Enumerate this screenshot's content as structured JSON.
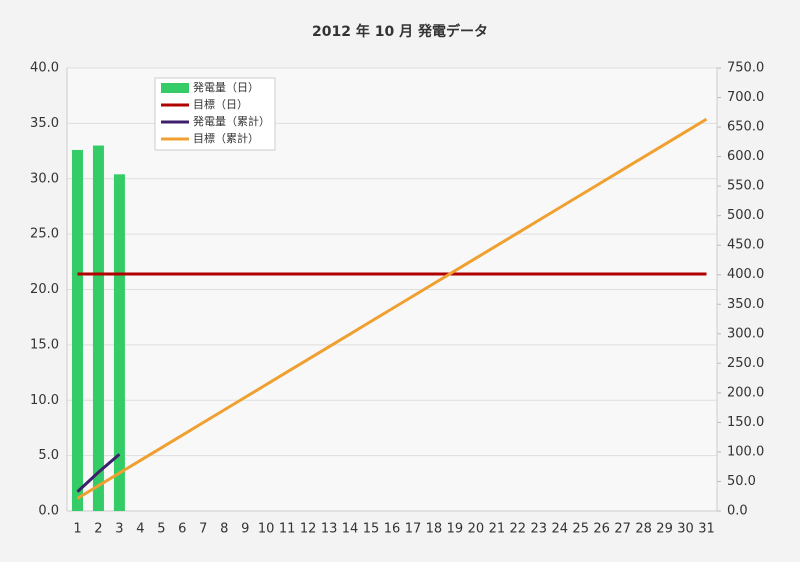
{
  "chart_data": {
    "type": "bar",
    "title": "2012 年 10 月 発電データ",
    "categories": [
      "1",
      "2",
      "3",
      "4",
      "5",
      "6",
      "7",
      "8",
      "9",
      "10",
      "11",
      "12",
      "13",
      "14",
      "15",
      "16",
      "17",
      "18",
      "19",
      "20",
      "21",
      "22",
      "23",
      "24",
      "25",
      "26",
      "27",
      "28",
      "29",
      "30",
      "31"
    ],
    "series": [
      {
        "name": "発電量（日）",
        "type": "bar",
        "axis": "y",
        "color": "#33cc66",
        "values": [
          32.6,
          33.0,
          30.4,
          null,
          null,
          null,
          null,
          null,
          null,
          null,
          null,
          null,
          null,
          null,
          null,
          null,
          null,
          null,
          null,
          null,
          null,
          null,
          null,
          null,
          null,
          null,
          null,
          null,
          null,
          null,
          null
        ]
      },
      {
        "name": "目標（日）",
        "type": "line",
        "axis": "y",
        "color": "#b00000",
        "values": [
          21.4,
          21.4,
          21.4,
          21.4,
          21.4,
          21.4,
          21.4,
          21.4,
          21.4,
          21.4,
          21.4,
          21.4,
          21.4,
          21.4,
          21.4,
          21.4,
          21.4,
          21.4,
          21.4,
          21.4,
          21.4,
          21.4,
          21.4,
          21.4,
          21.4,
          21.4,
          21.4,
          21.4,
          21.4,
          21.4,
          21.4
        ]
      },
      {
        "name": "発電量（累計）",
        "type": "line",
        "axis": "y2",
        "color": "#3d1f6b",
        "values": [
          32.6,
          65.6,
          96.0,
          null,
          null,
          null,
          null,
          null,
          null,
          null,
          null,
          null,
          null,
          null,
          null,
          null,
          null,
          null,
          null,
          null,
          null,
          null,
          null,
          null,
          null,
          null,
          null,
          null,
          null,
          null,
          null
        ]
      },
      {
        "name": "目標（累計）",
        "type": "line",
        "axis": "y2",
        "color": "#f0a030",
        "values": [
          21.4,
          42.8,
          64.2,
          85.6,
          107,
          128.4,
          149.8,
          171.2,
          192.6,
          214,
          235.4,
          256.8,
          278.2,
          299.6,
          321,
          342.4,
          363.8,
          385.2,
          406.6,
          428,
          449.4,
          470.8,
          492.2,
          513.6,
          535,
          556.4,
          577.8,
          599.2,
          620.6,
          642,
          663.4
        ]
      }
    ],
    "ylim": [
      0,
      40
    ],
    "yticks": [
      {
        "value": 0,
        "label": "0.0"
      },
      {
        "value": 5,
        "label": "5.0"
      },
      {
        "value": 10,
        "label": "10.0"
      },
      {
        "value": 15,
        "label": "15.0"
      },
      {
        "value": 20,
        "label": "20.0"
      },
      {
        "value": 25,
        "label": "25.0"
      },
      {
        "value": 30,
        "label": "30.0"
      },
      {
        "value": 35,
        "label": "35.0"
      },
      {
        "value": 40,
        "label": "40.0"
      }
    ],
    "y2lim": [
      0,
      750
    ],
    "y2ticks": [
      {
        "value": 0,
        "label": "0.0"
      },
      {
        "value": 50,
        "label": "50.0"
      },
      {
        "value": 100,
        "label": "100.0"
      },
      {
        "value": 150,
        "label": "150.0"
      },
      {
        "value": 200,
        "label": "200.0"
      },
      {
        "value": 250,
        "label": "250.0"
      },
      {
        "value": 300,
        "label": "300.0"
      },
      {
        "value": 350,
        "label": "350.0"
      },
      {
        "value": 400,
        "label": "400.0"
      },
      {
        "value": 450,
        "label": "450.0"
      },
      {
        "value": 500,
        "label": "500.0"
      },
      {
        "value": 550,
        "label": "550.0"
      },
      {
        "value": 600,
        "label": "600.0"
      },
      {
        "value": 650,
        "label": "650.0"
      },
      {
        "value": 700,
        "label": "700.0"
      },
      {
        "value": 750,
        "label": "750.0"
      }
    ],
    "grid": true,
    "legend": "upper left"
  }
}
